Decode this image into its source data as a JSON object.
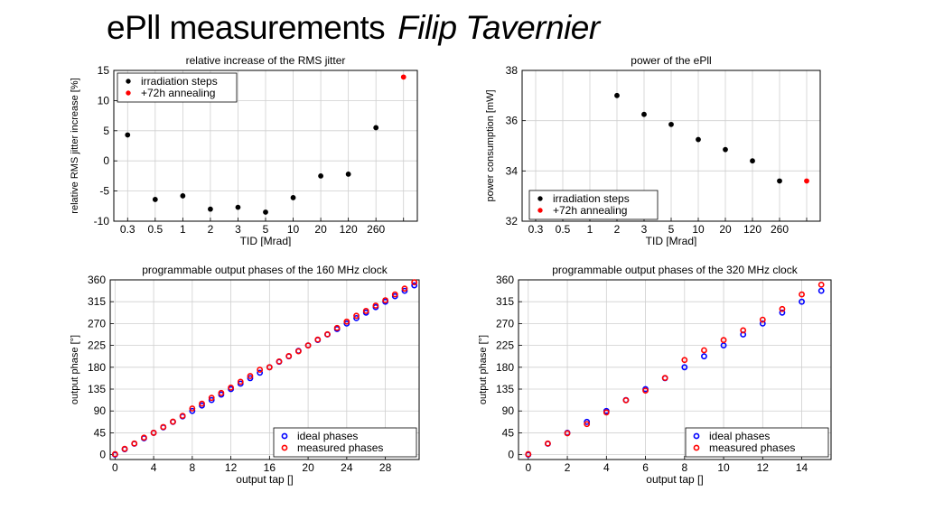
{
  "slide": {
    "title": "ePll  measurements",
    "author": "Filip Tavernier"
  },
  "chart_data": [
    {
      "type": "scatter",
      "title": "relative increase of the RMS jitter",
      "xlabel": "TID [Mrad]",
      "ylabel": "relative RMS jitter increase [%]",
      "categories": [
        "0.3",
        "0.5",
        "1",
        "2",
        "3",
        "5",
        "10",
        "20",
        "120",
        "260",
        ""
      ],
      "ylim": [
        -10,
        15
      ],
      "yticks": [
        -10,
        -5,
        0,
        5,
        10,
        15
      ],
      "grid": true,
      "legend_position": "top-left",
      "series": [
        {
          "name": "irradiation steps",
          "color": "#000000",
          "points": [
            [
              0,
              4.3
            ],
            [
              1,
              -6.4
            ],
            [
              2,
              -5.8
            ],
            [
              3,
              -8.0
            ],
            [
              4,
              -7.7
            ],
            [
              5,
              -8.5
            ],
            [
              6,
              -6.1
            ],
            [
              7,
              -2.5
            ],
            [
              8,
              -2.2
            ],
            [
              9,
              5.5
            ]
          ]
        },
        {
          "name": "+72h annealing",
          "color": "#ff0000",
          "points": [
            [
              10,
              13.9
            ]
          ]
        }
      ]
    },
    {
      "type": "scatter",
      "title": "power of the ePll",
      "xlabel": "TID [Mrad]",
      "ylabel": "power consumption [mW]",
      "categories": [
        "0.3",
        "0.5",
        "1",
        "2",
        "3",
        "5",
        "10",
        "20",
        "120",
        "260",
        ""
      ],
      "ylim": [
        32,
        38
      ],
      "yticks": [
        32,
        34,
        36,
        38
      ],
      "grid": true,
      "legend_position": "bottom-left",
      "series": [
        {
          "name": "irradiation steps",
          "color": "#000000",
          "points": [
            [
              3,
              37.0
            ],
            [
              4,
              36.25
            ],
            [
              5,
              35.85
            ],
            [
              6,
              35.25
            ],
            [
              7,
              34.85
            ],
            [
              8,
              34.4
            ],
            [
              9,
              33.6
            ]
          ]
        },
        {
          "name": "+72h annealing",
          "color": "#ff0000",
          "points": [
            [
              10,
              33.6
            ]
          ]
        }
      ]
    },
    {
      "type": "scatter",
      "title": "programmable output phases of the 160 MHz clock",
      "xlabel": "output tap []",
      "ylabel": "output phase [°]",
      "xlim": [
        -0.5,
        31.5
      ],
      "xticks": [
        0,
        4,
        8,
        12,
        16,
        20,
        24,
        28
      ],
      "ylim": [
        -10,
        360
      ],
      "yticks": [
        0,
        45,
        90,
        135,
        180,
        225,
        270,
        315,
        360
      ],
      "grid": true,
      "legend_position": "bottom-right",
      "series": [
        {
          "name": "ideal phases",
          "color": "#0000ff",
          "x": [
            0,
            1,
            2,
            3,
            4,
            5,
            6,
            7,
            8,
            9,
            10,
            11,
            12,
            13,
            14,
            15,
            16,
            17,
            18,
            19,
            20,
            21,
            22,
            23,
            24,
            25,
            26,
            27,
            28,
            29,
            30,
            31
          ],
          "y": [
            0,
            11.25,
            22.5,
            33.75,
            45,
            56.25,
            67.5,
            78.75,
            90,
            101.25,
            112.5,
            123.75,
            135,
            146.25,
            157.5,
            168.75,
            180,
            191.25,
            202.5,
            213.75,
            225,
            236.25,
            247.5,
            258.75,
            270,
            281.25,
            292.5,
            303.75,
            315,
            326.25,
            337.5,
            348.75
          ]
        },
        {
          "name": "measured phases",
          "color": "#ff0000",
          "x": [
            0,
            1,
            2,
            3,
            4,
            5,
            6,
            7,
            8,
            9,
            10,
            11,
            12,
            13,
            14,
            15,
            16,
            17,
            18,
            19,
            20,
            21,
            22,
            23,
            24,
            25,
            26,
            27,
            28,
            29,
            30,
            31
          ],
          "y": [
            1,
            12,
            23,
            35,
            45,
            57,
            68,
            80,
            95,
            105,
            117,
            127,
            138,
            150,
            162,
            175,
            180,
            192,
            203,
            213,
            225,
            237,
            248,
            261,
            274,
            286,
            296,
            307,
            318,
            330,
            342,
            355
          ]
        }
      ]
    },
    {
      "type": "scatter",
      "title": "programmable output phases of the 320 MHz clock",
      "xlabel": "output tap []",
      "ylabel": "output phase [°]",
      "xlim": [
        -0.5,
        15.5
      ],
      "xticks": [
        0,
        2,
        4,
        6,
        8,
        10,
        12,
        14
      ],
      "ylim": [
        -10,
        360
      ],
      "yticks": [
        0,
        45,
        90,
        135,
        180,
        225,
        270,
        315,
        360
      ],
      "grid": true,
      "legend_position": "bottom-right",
      "series": [
        {
          "name": "ideal phases",
          "color": "#0000ff",
          "x": [
            0,
            1,
            2,
            3,
            4,
            5,
            6,
            7,
            8,
            9,
            10,
            11,
            12,
            13,
            14,
            15
          ],
          "y": [
            0,
            22.5,
            45,
            67.5,
            90,
            112.5,
            135,
            157.5,
            180,
            202.5,
            225,
            247.5,
            270,
            292.5,
            315,
            337.5
          ]
        },
        {
          "name": "measured phases",
          "color": "#ff0000",
          "x": [
            0,
            1,
            2,
            3,
            4,
            5,
            6,
            7,
            8,
            9,
            10,
            11,
            12,
            13,
            14,
            15
          ],
          "y": [
            1,
            23,
            44,
            63,
            87,
            112,
            132,
            158,
            195,
            215,
            236,
            256,
            278,
            300,
            330,
            350
          ]
        }
      ]
    }
  ]
}
